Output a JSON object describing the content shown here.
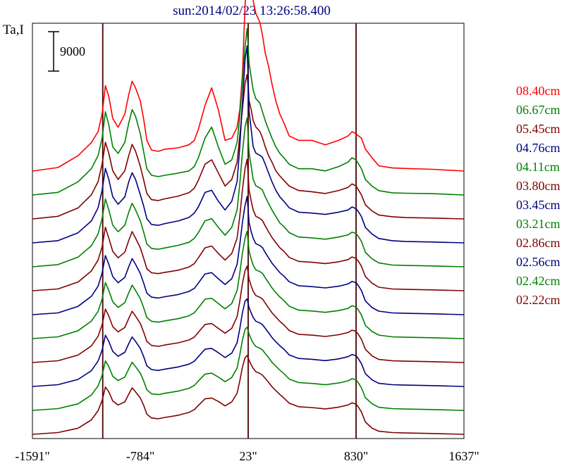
{
  "chart_data": {
    "type": "line",
    "title": "sun:2014/02/23 13:26:58.400",
    "ylabel": "Ta,I",
    "scale_bar_label": "9000",
    "x_ticks": [
      -1591,
      -784,
      23,
      830,
      1637
    ],
    "x_tick_labels": [
      "-1591\"",
      "-784\"",
      "23\"",
      "830\"",
      "1637\""
    ],
    "xlim": [
      -1591,
      1637
    ],
    "vlines": [
      -1065,
      23,
      830
    ],
    "x": [
      -1591,
      -1400,
      -1250,
      -1150,
      -1100,
      -1070,
      -1045,
      -1020,
      -990,
      -950,
      -900,
      -870,
      -845,
      -820,
      -784,
      -760,
      -735,
      -700,
      -650,
      -600,
      -500,
      -420,
      -380,
      -350,
      -300,
      -250,
      -200,
      -150,
      -100,
      -60,
      -40,
      -20,
      0,
      15,
      30,
      45,
      60,
      80,
      110,
      130,
      150,
      175,
      200,
      230,
      260,
      290,
      330,
      400,
      500,
      600,
      700,
      770,
      800,
      830,
      850,
      870,
      900,
      950,
      1000,
      1100,
      1200,
      1400,
      1637
    ],
    "series": [
      {
        "name": "08.40cm",
        "color": "#ff0000",
        "offset": 0,
        "values": [
          0,
          800,
          3500,
          6500,
          9000,
          13000,
          19500,
          17000,
          12000,
          10000,
          13000,
          17500,
          20500,
          19000,
          16000,
          12000,
          7000,
          4800,
          4500,
          5000,
          5300,
          6000,
          7000,
          9500,
          15000,
          19000,
          14000,
          7000,
          7500,
          10000,
          14000,
          22000,
          38000,
          44000,
          45000,
          43000,
          39000,
          36000,
          34000,
          31000,
          27000,
          24000,
          20000,
          16000,
          13000,
          11000,
          8000,
          7000,
          7000,
          6000,
          7000,
          8000,
          9000,
          8500,
          8000,
          7500,
          5000,
          3000,
          1200,
          700,
          600,
          400,
          0
        ]
      },
      {
        "name": "06.67cm",
        "color": "#008000",
        "offset": -5.2,
        "values": [
          0,
          600,
          3000,
          6000,
          9000,
          13000,
          19000,
          16000,
          11000,
          9500,
          12000,
          16500,
          19500,
          18000,
          14000,
          10000,
          6000,
          4500,
          4200,
          4500,
          5000,
          5500,
          6500,
          8500,
          13000,
          15500,
          11000,
          7000,
          8000,
          12000,
          18000,
          26000,
          34000,
          38000,
          30000,
          27000,
          24000,
          22000,
          21000,
          19000,
          17000,
          15000,
          13000,
          11000,
          9500,
          8500,
          7000,
          6000,
          6000,
          5500,
          6500,
          7500,
          8500,
          8000,
          7000,
          6000,
          3500,
          2000,
          1000,
          500,
          400,
          300,
          0
        ]
      },
      {
        "name": "05.45cm",
        "color": "#800000",
        "offset": -10.4,
        "values": [
          0,
          600,
          2500,
          5500,
          8500,
          12500,
          17500,
          15000,
          11000,
          9000,
          11000,
          14500,
          17000,
          15500,
          12000,
          9000,
          5800,
          4400,
          4200,
          4600,
          5200,
          6000,
          7000,
          8800,
          12500,
          13500,
          10500,
          7500,
          9000,
          13000,
          19000,
          25000,
          31000,
          33000,
          27000,
          25000,
          22500,
          21000,
          20000,
          18500,
          16500,
          14500,
          13000,
          11000,
          9800,
          8800,
          7500,
          6500,
          6200,
          5800,
          6500,
          7200,
          8000,
          7500,
          6500,
          5500,
          3200,
          1800,
          900,
          500,
          300,
          200,
          0
        ]
      },
      {
        "name": "04.76cm",
        "color": "#000080",
        "offset": -15.6,
        "values": [
          0,
          500,
          2300,
          5000,
          8000,
          12000,
          17000,
          14500,
          10500,
          8800,
          10500,
          14000,
          16000,
          14500,
          11000,
          8500,
          5500,
          4200,
          4000,
          4400,
          5000,
          5800,
          6800,
          8200,
          11500,
          12000,
          9500,
          7500,
          9500,
          14000,
          22000,
          32000,
          42000,
          45000,
          30000,
          26000,
          22000,
          20500,
          20000,
          19500,
          18000,
          16000,
          14000,
          12000,
          10500,
          9500,
          8000,
          7000,
          6800,
          6500,
          7000,
          7500,
          8200,
          7800,
          7000,
          6000,
          3500,
          2000,
          1000,
          500,
          300,
          200,
          0
        ]
      },
      {
        "name": "04.11cm",
        "color": "#008000",
        "offset": -20.8,
        "values": [
          0,
          500,
          2200,
          4800,
          7500,
          11000,
          15500,
          13000,
          9500,
          8000,
          9500,
          12500,
          14500,
          13000,
          10500,
          8000,
          5200,
          4200,
          4000,
          4300,
          4900,
          5600,
          6500,
          7800,
          10500,
          11000,
          9000,
          7200,
          9000,
          13000,
          19000,
          26000,
          32000,
          34000,
          26000,
          23000,
          20000,
          18500,
          18000,
          17500,
          16000,
          14500,
          13000,
          11500,
          10000,
          9200,
          7800,
          6800,
          6600,
          6300,
          6800,
          7300,
          7900,
          7600,
          6800,
          5800,
          3300,
          1800,
          900,
          400,
          300,
          200,
          0
        ]
      },
      {
        "name": "03.80cm",
        "color": "#800000",
        "offset": -26.0,
        "values": [
          0,
          400,
          2000,
          4500,
          7000,
          10000,
          14500,
          12000,
          9000,
          7500,
          8800,
          11500,
          13500,
          12000,
          9800,
          7500,
          5000,
          4100,
          3900,
          4200,
          4700,
          5400,
          6200,
          7500,
          9800,
          10200,
          8500,
          7000,
          8500,
          12000,
          17000,
          23000,
          28000,
          30000,
          23000,
          20500,
          18500,
          17000,
          16500,
          16000,
          14800,
          13500,
          12200,
          11000,
          9800,
          9000,
          7600,
          6700,
          6500,
          6200,
          6600,
          7100,
          7700,
          7400,
          6600,
          5600,
          3200,
          1700,
          800,
          400,
          300,
          200,
          0
        ]
      },
      {
        "name": "03.45cm",
        "color": "#000080",
        "offset": -31.2,
        "values": [
          0,
          400,
          1900,
          4200,
          6500,
          9500,
          13500,
          11500,
          8700,
          7300,
          8500,
          11000,
          12800,
          11500,
          9400,
          7300,
          4900,
          4000,
          3800,
          4100,
          4600,
          5300,
          6000,
          7200,
          9300,
          9600,
          8200,
          6900,
          8200,
          11500,
          16000,
          21000,
          25000,
          27000,
          21000,
          19000,
          17500,
          16200,
          15800,
          15300,
          14200,
          13000,
          11800,
          10700,
          9600,
          8800,
          7500,
          6600,
          6400,
          6100,
          6500,
          7000,
          7600,
          7300,
          6500,
          5500,
          3100,
          1600,
          800,
          400,
          300,
          200,
          0
        ]
      },
      {
        "name": "03.21cm",
        "color": "#008000",
        "offset": -36.4,
        "values": [
          0,
          400,
          1800,
          4000,
          6200,
          9000,
          12800,
          11000,
          8400,
          7100,
          8200,
          10500,
          12200,
          11000,
          9100,
          7100,
          4800,
          3950,
          3750,
          4050,
          4550,
          5200,
          5900,
          7000,
          9000,
          9200,
          8000,
          6800,
          8000,
          11000,
          15000,
          19500,
          23000,
          24500,
          20000,
          18200,
          16800,
          15700,
          15300,
          14900,
          13900,
          12800,
          11600,
          10500,
          9500,
          8700,
          7400,
          6500,
          6300,
          6000,
          6400,
          6900,
          7500,
          7200,
          6400,
          5400,
          3000,
          1600,
          800,
          400,
          300,
          200,
          0
        ]
      },
      {
        "name": "02.86cm",
        "color": "#800000",
        "offset": -41.6,
        "values": [
          0,
          400,
          1700,
          3800,
          6000,
          8600,
          12200,
          10600,
          8200,
          7000,
          8000,
          10100,
          11700,
          10600,
          8900,
          7000,
          4800,
          3900,
          3700,
          4000,
          4500,
          5150,
          5800,
          6900,
          8700,
          8900,
          7800,
          6700,
          7800,
          10500,
          14000,
          18000,
          21000,
          22000,
          19000,
          17500,
          16300,
          15300,
          14900,
          14500,
          13600,
          12500,
          11400,
          10400,
          9400,
          8600,
          7300,
          6450,
          6250,
          5950,
          6350,
          6850,
          7400,
          7100,
          6300,
          5300,
          3000,
          1500,
          700,
          400,
          300,
          200,
          0
        ]
      },
      {
        "name": "02.56cm",
        "color": "#000080",
        "offset": -46.8,
        "values": [
          0,
          400,
          1600,
          3600,
          5800,
          8300,
          11700,
          10300,
          8000,
          6900,
          7800,
          9800,
          11300,
          10300,
          8700,
          6900,
          4700,
          3850,
          3650,
          3950,
          4450,
          5100,
          5750,
          6800,
          8500,
          8700,
          7700,
          6600,
          7600,
          10000,
          13200,
          16800,
          19500,
          20000,
          18000,
          16800,
          15800,
          14900,
          14500,
          14100,
          13300,
          12300,
          11200,
          10200,
          9300,
          8500,
          7200,
          6400,
          6200,
          5900,
          6300,
          6800,
          7300,
          7000,
          6200,
          5200,
          2900,
          1500,
          700,
          400,
          300,
          200,
          0
        ]
      },
      {
        "name": "02.42cm",
        "color": "#008000",
        "offset": -52.0,
        "values": [
          0,
          400,
          1500,
          3500,
          5600,
          8000,
          11300,
          10000,
          7800,
          6800,
          7600,
          9500,
          11000,
          10000,
          8500,
          6800,
          4700,
          3800,
          3600,
          3900,
          4400,
          5050,
          5700,
          6700,
          8300,
          8500,
          7600,
          6550,
          7500,
          9700,
          12700,
          16000,
          18500,
          19000,
          17400,
          16300,
          15400,
          14600,
          14200,
          13800,
          13000,
          12100,
          11000,
          10100,
          9200,
          8400,
          7150,
          6350,
          6150,
          5850,
          6250,
          6750,
          7250,
          6950,
          6150,
          5150,
          2900,
          1500,
          700,
          400,
          300,
          200,
          0
        ]
      },
      {
        "name": "02.22cm",
        "color": "#800000",
        "offset": -57.2,
        "values": [
          0,
          400,
          1400,
          3300,
          5400,
          7700,
          10800,
          9700,
          7600,
          6700,
          7400,
          9200,
          10600,
          9700,
          8300,
          6700,
          4600,
          3750,
          3550,
          3850,
          4350,
          5000,
          5650,
          6600,
          8100,
          8300,
          7500,
          6500,
          7400,
          9400,
          12200,
          15300,
          17500,
          18000,
          16900,
          15900,
          15100,
          14300,
          13900,
          13500,
          12800,
          11900,
          10900,
          10000,
          9100,
          8300,
          7100,
          6300,
          6100,
          5800,
          6200,
          6700,
          7200,
          6900,
          6100,
          5100,
          2800,
          1400,
          700,
          400,
          300,
          200,
          0
        ]
      }
    ]
  }
}
